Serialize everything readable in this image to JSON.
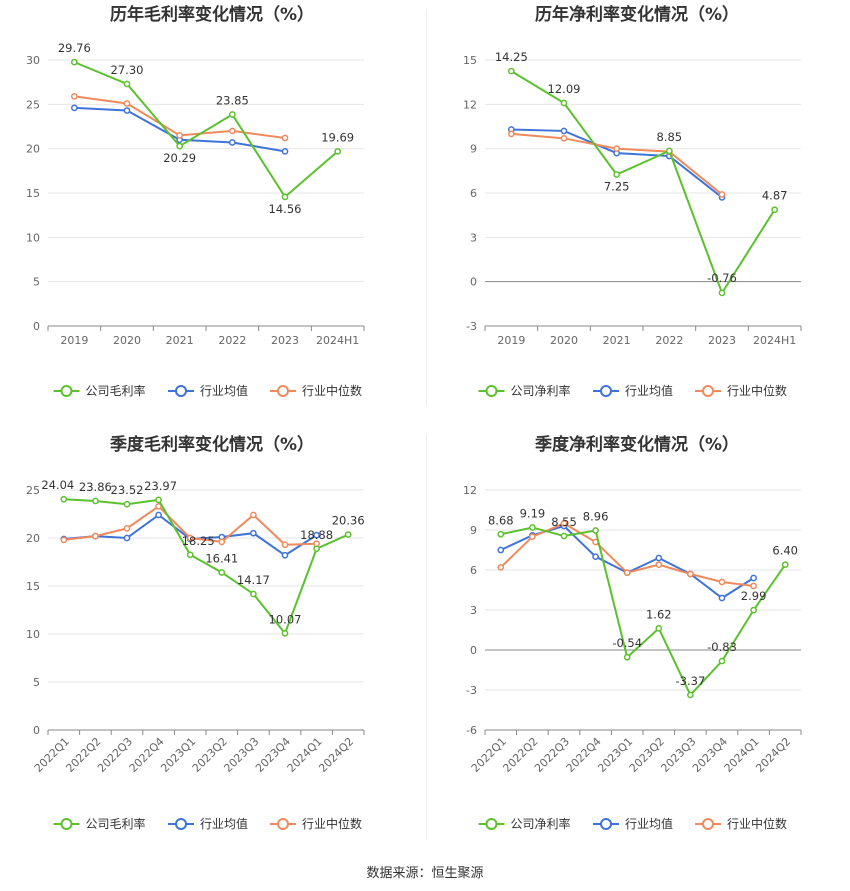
{
  "source_text": "数据来源：恒生聚源",
  "colors": {
    "company": "#5cc12e",
    "avg": "#3f73d9",
    "median": "#f08a5d"
  },
  "legend_shared": {
    "avg": "行业均值",
    "median": "行业中位数"
  },
  "chart_data": [
    {
      "type": "line",
      "title": "历年毛利率变化情况（%）",
      "categories": [
        "2019",
        "2020",
        "2021",
        "2022",
        "2023",
        "2024H1"
      ],
      "ylim": [
        0,
        30
      ],
      "yticks": [
        0,
        5,
        10,
        15,
        20,
        25,
        30
      ],
      "series": [
        {
          "name": "公司毛利率",
          "values": [
            29.76,
            27.3,
            20.29,
            23.85,
            14.56,
            19.69
          ]
        },
        {
          "name": "行业均值",
          "values": [
            24.6,
            24.3,
            21.0,
            20.7,
            19.7,
            null
          ]
        },
        {
          "name": "行业中位数",
          "values": [
            25.9,
            25.1,
            21.5,
            22.0,
            21.2,
            null
          ]
        }
      ],
      "data_labels": [
        "29.76",
        "27.30",
        "20.29",
        "23.85",
        "14.56",
        "19.69"
      ]
    },
    {
      "type": "line",
      "title": "历年净利率变化情况（%）",
      "categories": [
        "2019",
        "2020",
        "2021",
        "2022",
        "2023",
        "2024H1"
      ],
      "ylim": [
        -3,
        15
      ],
      "yticks": [
        -3,
        0,
        3,
        6,
        9,
        12,
        15
      ],
      "series": [
        {
          "name": "公司净利率",
          "values": [
            14.25,
            12.09,
            7.25,
            8.85,
            -0.76,
            4.87
          ]
        },
        {
          "name": "行业均值",
          "values": [
            10.3,
            10.2,
            8.7,
            8.5,
            5.7,
            null
          ]
        },
        {
          "name": "行业中位数",
          "values": [
            10.0,
            9.7,
            9.0,
            8.8,
            5.9,
            null
          ]
        }
      ],
      "data_labels": [
        "14.25",
        "12.09",
        "7.25",
        "8.85",
        "-0.76",
        "4.87"
      ]
    },
    {
      "type": "line",
      "title": "季度毛利率变化情况（%）",
      "categories": [
        "2022Q1",
        "2022Q2",
        "2022Q3",
        "2022Q4",
        "2023Q1",
        "2023Q2",
        "2023Q3",
        "2023Q4",
        "2024Q1",
        "2024Q2"
      ],
      "ylim": [
        0,
        25
      ],
      "yticks": [
        0,
        5,
        10,
        15,
        20,
        25
      ],
      "series": [
        {
          "name": "公司毛利率",
          "values": [
            24.04,
            23.86,
            23.52,
            23.97,
            18.25,
            16.41,
            14.17,
            10.07,
            18.88,
            20.36
          ]
        },
        {
          "name": "行业均值",
          "values": [
            19.9,
            20.2,
            20.0,
            22.4,
            19.9,
            20.1,
            20.5,
            18.2,
            20.3,
            null
          ]
        },
        {
          "name": "行业中位数",
          "values": [
            19.8,
            20.2,
            21.0,
            23.3,
            20.0,
            19.6,
            22.4,
            19.3,
            19.4,
            null
          ]
        }
      ],
      "data_labels": [
        "24.04",
        "23.86",
        "23.52",
        "23.97",
        "18.25",
        "16.41",
        "14.17",
        "10.07",
        "18.88",
        "20.36"
      ]
    },
    {
      "type": "line",
      "title": "季度净利率变化情况（%）",
      "categories": [
        "2022Q1",
        "2022Q2",
        "2022Q3",
        "2022Q4",
        "2023Q1",
        "2023Q2",
        "2023Q3",
        "2023Q4",
        "2024Q1",
        "2024Q2"
      ],
      "ylim": [
        -6,
        12
      ],
      "yticks": [
        -6,
        -3,
        0,
        3,
        6,
        9,
        12
      ],
      "series": [
        {
          "name": "公司净利率",
          "values": [
            8.68,
            9.19,
            8.55,
            8.96,
            -0.54,
            1.62,
            -3.37,
            -0.83,
            2.99,
            6.4
          ]
        },
        {
          "name": "行业均值",
          "values": [
            7.5,
            8.6,
            9.3,
            7.0,
            5.8,
            6.9,
            5.7,
            3.9,
            5.4,
            null
          ]
        },
        {
          "name": "行业中位数",
          "values": [
            6.2,
            8.5,
            9.5,
            8.1,
            5.8,
            6.4,
            5.7,
            5.1,
            4.8,
            null
          ]
        }
      ],
      "data_labels": [
        "8.68",
        "9.19",
        "8.55",
        "8.96",
        "-0.54",
        "1.62",
        "-3.37",
        "-0.83",
        "2.99",
        "6.40"
      ]
    }
  ]
}
